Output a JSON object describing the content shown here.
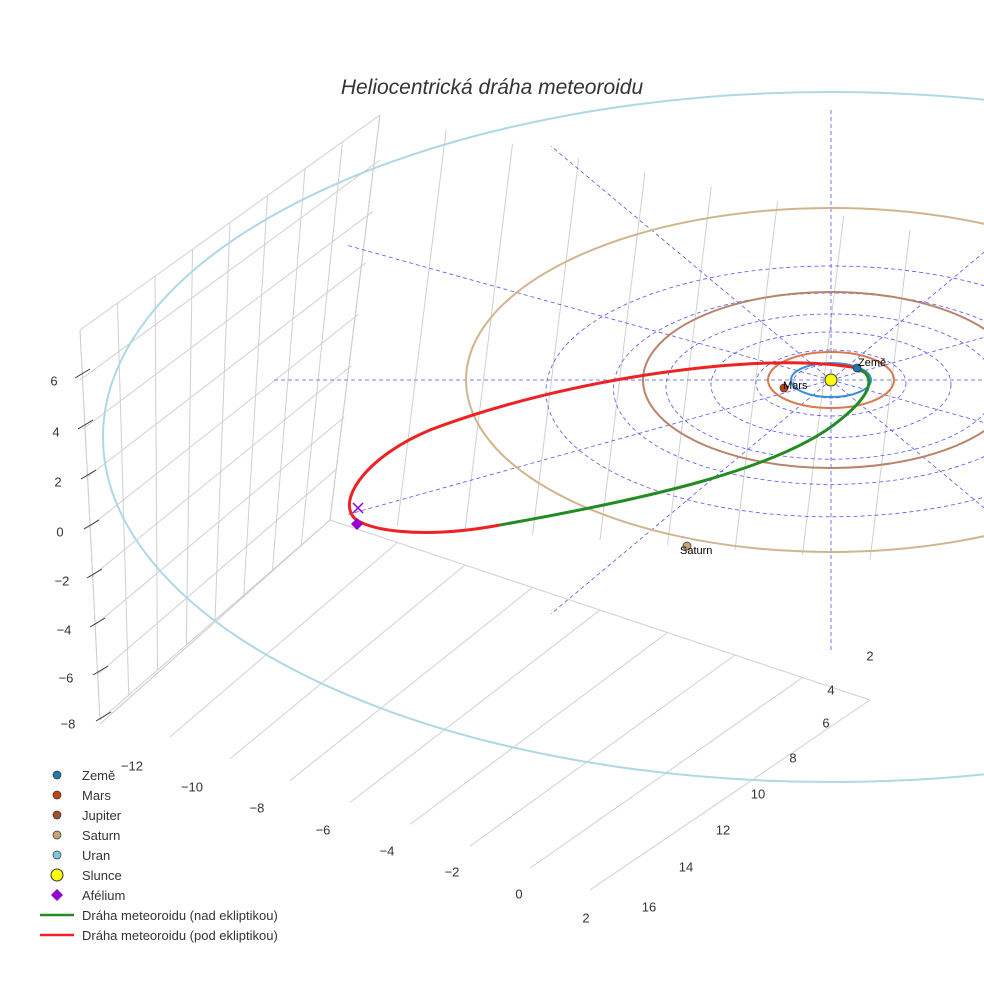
{
  "chart_data": {
    "type": "scatter3d",
    "title": "Heliocentrická dráha meteoroidu",
    "axes": {
      "x": {
        "ticks": [
          -12,
          -10,
          -8,
          -6,
          -4,
          -2,
          0,
          2
        ]
      },
      "y": {
        "ticks": [
          2,
          4,
          6,
          8,
          10,
          12,
          14,
          16
        ]
      },
      "z": {
        "ticks": [
          6,
          4,
          2,
          0,
          -2,
          -4,
          -6,
          -8
        ]
      }
    },
    "planets": [
      {
        "name": "Země",
        "orbit_radius_au": 1.0,
        "color": "#1f77b4",
        "orbit_color": "#3a8fd0",
        "labeled": true
      },
      {
        "name": "Mars",
        "orbit_radius_au": 1.52,
        "color": "#c1440e",
        "orbit_color": "#d9784f",
        "labeled": true
      },
      {
        "name": "Jupiter",
        "orbit_radius_au": 5.2,
        "color": "#a0522d",
        "orbit_color": "#b8836a",
        "labeled": false
      },
      {
        "name": "Saturn",
        "orbit_radius_au": 9.54,
        "color": "#c8a27a",
        "orbit_color": "#d2b48c",
        "labeled": true
      },
      {
        "name": "Uran",
        "orbit_radius_au": 19.2,
        "color": "#7fc8d8",
        "orbit_color": "#add8e6",
        "labeled": false
      }
    ],
    "sun": {
      "name": "Slunce",
      "color": "#ffff00"
    },
    "aphelion": {
      "name": "Afélium",
      "color": "#9400d3"
    },
    "orbit_segments": [
      {
        "name": "Dráha meteoroidu (nad ekliptikou)",
        "color": "#228b22"
      },
      {
        "name": "Dráha meteoroidu (pod ekliptikou)",
        "color": "#ee2222"
      }
    ],
    "legend_position": "bottom-left",
    "grid": true
  }
}
